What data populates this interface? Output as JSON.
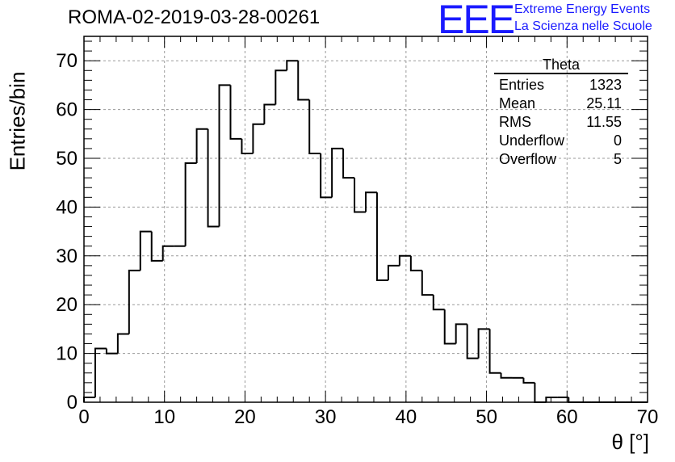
{
  "header": {
    "run_title": "ROMA-02-2019-03-28-00261",
    "logo_text": "EEE",
    "tagline_1": "Extreme Energy Events",
    "tagline_2": "La Scienza nelle Scuole"
  },
  "stats_box": {
    "title": "Theta",
    "rows": [
      {
        "label": "Entries",
        "value": "1323"
      },
      {
        "label": "Mean",
        "value": "25.11"
      },
      {
        "label": "RMS",
        "value": "11.55"
      },
      {
        "label": "Underflow",
        "value": "0"
      },
      {
        "label": "Overflow",
        "value": "5"
      }
    ]
  },
  "colors": {
    "logo": "#1a1aff",
    "line": "#000000",
    "grid": "#9a9a9a"
  },
  "chart_data": {
    "type": "histogram",
    "xlabel": "θ [°]",
    "ylabel": "Entries/bin",
    "xlim": [
      0,
      70
    ],
    "ylim": [
      0,
      75
    ],
    "bin_width": 1.4,
    "bin_edges_start": 0,
    "values": [
      1,
      11,
      10,
      14,
      27,
      35,
      29,
      32,
      32,
      49,
      56,
      36,
      65,
      54,
      51,
      57,
      61,
      68,
      70,
      62,
      51,
      42,
      52,
      46,
      39,
      43,
      25,
      28,
      30,
      27,
      22,
      19,
      12,
      16,
      9,
      15,
      6,
      5,
      5,
      4,
      0,
      1,
      1,
      0,
      0,
      0,
      0,
      0,
      0,
      0
    ],
    "x_ticks": [
      0,
      10,
      20,
      30,
      40,
      50,
      60,
      70
    ],
    "y_ticks": [
      0,
      10,
      20,
      30,
      40,
      50,
      60,
      70
    ],
    "grid": true,
    "legend": "top-right stats box"
  }
}
